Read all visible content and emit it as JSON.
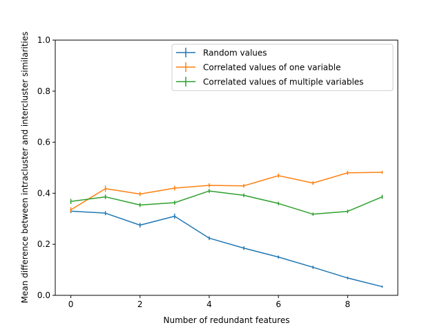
{
  "chart_data": {
    "type": "line",
    "title": "",
    "xlabel": "Number of redundant features",
    "ylabel": "Mean difference between intracluster and intercluster similarities",
    "xlim": [
      -0.45,
      9.45
    ],
    "ylim": [
      0.0,
      1.0
    ],
    "x_ticks": [
      0,
      2,
      4,
      6,
      8
    ],
    "y_ticks": [
      0.0,
      0.2,
      0.4,
      0.6,
      0.8,
      1.0
    ],
    "x_tick_labels": [
      "0",
      "2",
      "4",
      "6",
      "8"
    ],
    "y_tick_labels": [
      "0.0",
      "0.2",
      "0.4",
      "0.6",
      "0.8",
      "1.0"
    ],
    "x": [
      0,
      1,
      2,
      3,
      4,
      5,
      6,
      7,
      8,
      9
    ],
    "grid": false,
    "legend_position": "top-right",
    "series": [
      {
        "name": "Random values",
        "color": "#1f77b4",
        "values": [
          0.33,
          0.322,
          0.275,
          0.31,
          0.224,
          0.185,
          0.15,
          0.11,
          0.068,
          0.034
        ],
        "errors": [
          0.008,
          0.008,
          0.009,
          0.01,
          0.007,
          0.007,
          0.006,
          0.006,
          0.005,
          0.004
        ]
      },
      {
        "name": "Correlated values of one variable",
        "color": "#ff7f0e",
        "values": [
          0.335,
          0.418,
          0.397,
          0.42,
          0.431,
          0.429,
          0.469,
          0.44,
          0.48,
          0.482
        ],
        "errors": [
          0.01,
          0.012,
          0.008,
          0.009,
          0.008,
          0.007,
          0.008,
          0.007,
          0.008,
          0.006
        ]
      },
      {
        "name": "Correlated values of multiple variables",
        "color": "#2ca02c",
        "values": [
          0.368,
          0.386,
          0.354,
          0.363,
          0.409,
          0.392,
          0.36,
          0.318,
          0.329,
          0.386
        ],
        "errors": [
          0.01,
          0.009,
          0.008,
          0.008,
          0.008,
          0.007,
          0.007,
          0.006,
          0.007,
          0.008
        ]
      }
    ]
  }
}
